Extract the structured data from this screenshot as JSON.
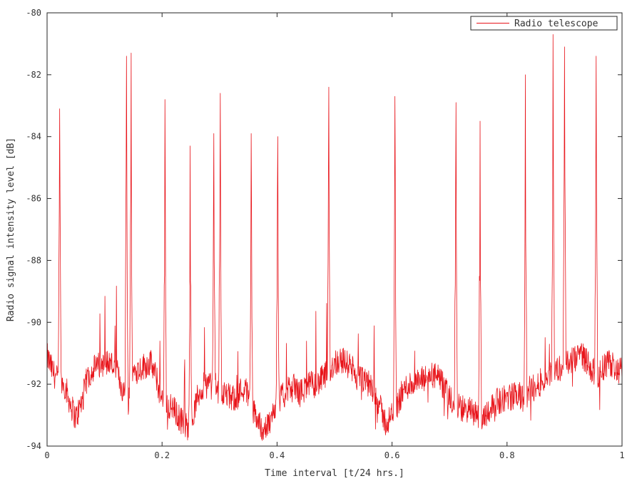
{
  "chart_data": {
    "type": "line",
    "title": "",
    "xlabel": "Time interval [t/24 hrs.]",
    "ylabel": "Radio signal intensity level [dB]",
    "xlim": [
      0,
      1
    ],
    "ylim": [
      -94,
      -80
    ],
    "x_ticks": [
      0,
      0.2,
      0.4,
      0.6,
      0.8,
      1
    ],
    "x_tick_labels": [
      "0",
      "0.2",
      "0.4",
      "0.6",
      "0.8",
      "1"
    ],
    "y_ticks": [
      -94,
      -92,
      -90,
      -88,
      -86,
      -84,
      -82,
      -80
    ],
    "y_tick_labels": [
      "-94",
      "-92",
      "-90",
      "-88",
      "-86",
      "-84",
      "-82",
      "-80"
    ],
    "grid": false,
    "legend_position": "top-right",
    "colors": {
      "series": "#e8141a",
      "axes": "#262626"
    },
    "series": [
      {
        "name": "Radio telescope",
        "x": [
          0,
          0.01,
          0.02,
          0.03,
          0.04,
          0.05,
          0.06,
          0.07,
          0.08,
          0.09,
          0.1,
          0.11,
          0.12,
          0.13,
          0.14,
          0.15,
          0.16,
          0.17,
          0.18,
          0.19,
          0.2,
          0.21,
          0.22,
          0.23,
          0.24,
          0.25,
          0.26,
          0.27,
          0.28,
          0.29,
          0.3,
          0.31,
          0.32,
          0.33,
          0.34,
          0.35,
          0.36,
          0.37,
          0.38,
          0.39,
          0.4,
          0.41,
          0.42,
          0.43,
          0.44,
          0.45,
          0.46,
          0.47,
          0.48,
          0.49,
          0.5,
          0.51,
          0.52,
          0.53,
          0.54,
          0.55,
          0.56,
          0.57,
          0.58,
          0.59,
          0.6,
          0.61,
          0.62,
          0.63,
          0.64,
          0.65,
          0.66,
          0.67,
          0.68,
          0.69,
          0.7,
          0.71,
          0.72,
          0.73,
          0.74,
          0.75,
          0.76,
          0.77,
          0.78,
          0.79,
          0.8,
          0.81,
          0.82,
          0.83,
          0.84,
          0.85,
          0.86,
          0.87,
          0.88,
          0.89,
          0.9,
          0.91,
          0.92,
          0.93,
          0.94,
          0.95,
          0.96,
          0.97,
          0.98,
          0.99,
          1
        ],
        "y": [
          -91.1,
          -91.6,
          -91.9,
          -92.0,
          -92.6,
          -93.1,
          -92.6,
          -91.8,
          -91.5,
          -91.4,
          -91.3,
          -91.3,
          -91.5,
          -92.1,
          -92.7,
          -91.6,
          -91.5,
          -91.4,
          -91.3,
          -91.8,
          -92.6,
          -92.7,
          -92.8,
          -93.1,
          -93.3,
          -93.5,
          -92.5,
          -92.1,
          -92.0,
          -92.1,
          -92.2,
          -92.3,
          -92.5,
          -92.4,
          -92.1,
          -92.3,
          -92.9,
          -93.3,
          -93.5,
          -93.1,
          -92.6,
          -92.4,
          -92.2,
          -92.1,
          -92.3,
          -92.1,
          -92.0,
          -92.0,
          -91.8,
          -91.6,
          -91.3,
          -91.2,
          -91.3,
          -91.5,
          -91.8,
          -91.9,
          -92.0,
          -92.2,
          -92.8,
          -93.3,
          -93.0,
          -92.6,
          -92.2,
          -92.0,
          -92.0,
          -91.9,
          -91.8,
          -91.7,
          -91.8,
          -92.1,
          -92.5,
          -92.7,
          -92.8,
          -92.8,
          -92.9,
          -93.0,
          -93.0,
          -92.8,
          -92.6,
          -92.5,
          -92.4,
          -92.4,
          -92.3,
          -92.6,
          -92.1,
          -92.1,
          -91.9,
          -91.8,
          -91.6,
          -91.5,
          -91.4,
          -91.3,
          -91.2,
          -91.0,
          -91.3,
          -91.6,
          -91.7,
          -91.4,
          -91.3,
          -91.5,
          -91.6
        ]
      }
    ],
    "spikes": [
      {
        "x": 0.022,
        "y": -83.1
      },
      {
        "x": 0.138,
        "y": -81.4
      },
      {
        "x": 0.146,
        "y": -81.3
      },
      {
        "x": 0.205,
        "y": -82.8
      },
      {
        "x": 0.249,
        "y": -84.3
      },
      {
        "x": 0.29,
        "y": -83.9
      },
      {
        "x": 0.301,
        "y": -82.6
      },
      {
        "x": 0.355,
        "y": -83.9
      },
      {
        "x": 0.401,
        "y": -84.0
      },
      {
        "x": 0.49,
        "y": -82.4
      },
      {
        "x": 0.605,
        "y": -82.7
      },
      {
        "x": 0.711,
        "y": -82.9
      },
      {
        "x": 0.753,
        "y": -83.5
      },
      {
        "x": 0.832,
        "y": -82.0
      },
      {
        "x": 0.88,
        "y": -80.7
      },
      {
        "x": 0.9,
        "y": -81.1
      },
      {
        "x": 0.955,
        "y": -81.4
      }
    ]
  }
}
